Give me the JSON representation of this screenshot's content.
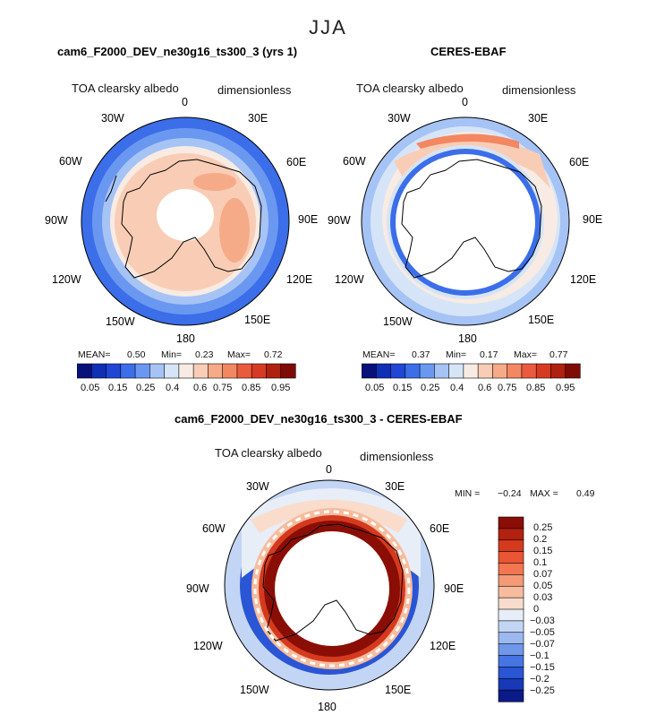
{
  "season": "JJA",
  "panels": [
    {
      "title": "cam6_F2000_DEV_ne30g16_ts300_3 (yrs 1)",
      "variable": "TOA clearsky albedo",
      "units": "dimensionless",
      "stats": {
        "mean_label": "MEAN=",
        "mean": "0.50",
        "min_label": "Min=",
        "min": "0.23",
        "max_label": "Max=",
        "max": "0.72"
      }
    },
    {
      "title": "CERES-EBAF",
      "variable": "TOA clearsky albedo",
      "units": "dimensionless",
      "stats": {
        "mean_label": "MEAN=",
        "mean": "0.37",
        "min_label": "Min=",
        "min": "0.17",
        "max_label": "Max=",
        "max": "0.77"
      }
    },
    {
      "title": "cam6_F2000_DEV_ne30g16_ts300_3 - CERES-EBAF",
      "variable": "TOA clearsky albedo",
      "units": "dimensionless",
      "stats": {
        "min_label": "MIN =",
        "min": "−0.24",
        "max_label": "MAX =",
        "max": "0.49"
      }
    }
  ],
  "lon_labels": [
    "0",
    "30E",
    "60E",
    "90E",
    "120E",
    "150E",
    "180",
    "150W",
    "120W",
    "90W",
    "60W",
    "30W"
  ],
  "colorbar_top": {
    "labels": [
      "0.05",
      "0.15",
      "0.25",
      "0.4",
      "0.6",
      "0.75",
      "0.85",
      "0.95"
    ],
    "colors": [
      "#08107a",
      "#0f2fb4",
      "#2046d6",
      "#3b6ee8",
      "#6a98f0",
      "#a6c3f5",
      "#d6e4f7",
      "#f7ebe3",
      "#f9cdb5",
      "#f6ab88",
      "#f28762",
      "#ea5a3d",
      "#d63a22",
      "#b0210f",
      "#7e0c05"
    ]
  },
  "colorbar_diff": {
    "labels": [
      "0.25",
      "0.2",
      "0.15",
      "0.1",
      "0.07",
      "0.05",
      "0.03",
      "0",
      "−0.03",
      "−0.05",
      "−0.07",
      "−0.1",
      "−0.15",
      "−0.2",
      "−0.25"
    ],
    "colors": [
      "#8a0e06",
      "#b3210f",
      "#d53a1e",
      "#ea5533",
      "#f27750",
      "#f49a77",
      "#f7bc9d",
      "#f9dccb",
      "#e8eef8",
      "#c3d5f4",
      "#9bb9f0",
      "#6f97ea",
      "#4674e2",
      "#2a55d5",
      "#1739b8",
      "#0a1a86"
    ]
  }
}
